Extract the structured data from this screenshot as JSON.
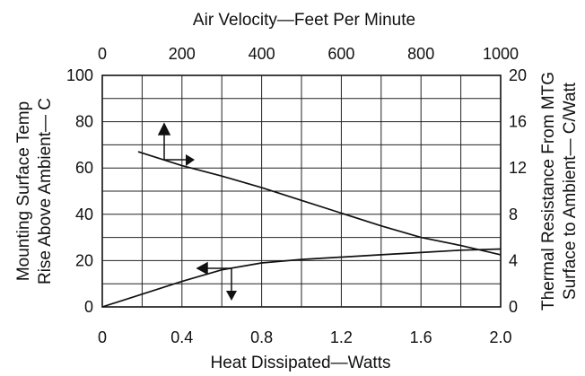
{
  "chart_data": {
    "type": "line",
    "top_axis": {
      "label": "Air Velocity—Feet Per Minute",
      "range": [
        0,
        1000
      ],
      "ticks": [
        "0",
        "200",
        "400",
        "600",
        "800",
        "1000"
      ]
    },
    "bottom_axis": {
      "label": "Heat Dissipated—Watts",
      "range": [
        0,
        2.0
      ],
      "ticks": [
        "0",
        "0.4",
        "0.8",
        "1.2",
        "1.6",
        "2.0"
      ]
    },
    "left_axis": {
      "label_line1": "Mounting Surface Temp",
      "label_line2": "Rise Above Ambient— C",
      "range": [
        0,
        100
      ],
      "ticks": [
        "0",
        "20",
        "40",
        "60",
        "80",
        "100"
      ]
    },
    "right_axis": {
      "label_line1": "Thermal Resistance From MTG",
      "label_line2": "Surface to Ambient— C/Watt",
      "range": [
        0,
        20
      ],
      "ticks": [
        "0",
        "4",
        "8",
        "12",
        "16",
        "20"
      ]
    },
    "grid": true,
    "series": [
      {
        "reads": "air velocity (top axis) vs thermal resistance (right axis)",
        "x_axis": "top",
        "y_axis": "right",
        "x": [
          90,
          200,
          300,
          400,
          500,
          600,
          700,
          800,
          900,
          1000
        ],
        "y": [
          13.4,
          12.2,
          11.3,
          10.3,
          9.2,
          8.1,
          7.0,
          6.0,
          5.3,
          4.5
        ]
      },
      {
        "reads": "heat dissipated (bottom axis) vs temperature rise (left axis)",
        "x_axis": "bottom",
        "y_axis": "left",
        "x": [
          0,
          0.2,
          0.4,
          0.6,
          0.8,
          1.0,
          1.2,
          1.4,
          1.6,
          1.8,
          2.0
        ],
        "y": [
          0,
          5.5,
          11,
          16,
          19,
          20.5,
          21.5,
          22.5,
          23.5,
          24.5,
          25
        ]
      }
    ]
  }
}
